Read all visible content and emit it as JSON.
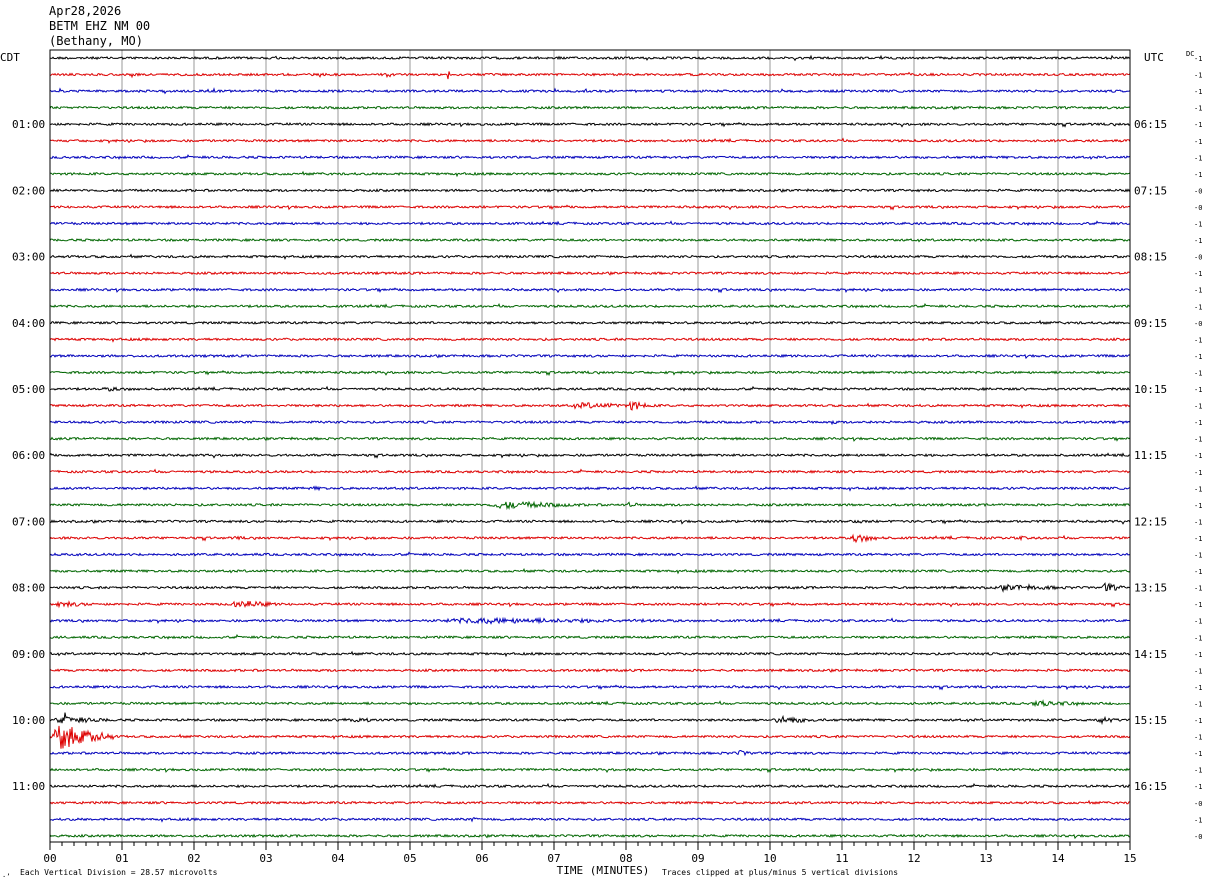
{
  "header": {
    "date": "Apr28,2026",
    "station": "BETM EHZ NM 00",
    "location": "(Bethany, MO)"
  },
  "left_tz": "CDT",
  "right_tz": "UTC",
  "dc_label": "DC",
  "footer": {
    "scale_note": "Each Vertical Division =   28.57 microvolts",
    "clip_note": "Traces clipped at plus/minus 5 vertical divisions",
    "corner_mark": "·’"
  },
  "chart_data": {
    "type": "helicorder",
    "xlabel": "TIME (MINUTES)",
    "x_ticks": [
      "00",
      "01",
      "02",
      "03",
      "04",
      "05",
      "06",
      "07",
      "08",
      "09",
      "10",
      "11",
      "12",
      "13",
      "14",
      "15"
    ],
    "x_range": [
      0,
      15
    ],
    "minutes_per_line": 15,
    "line_count": 48,
    "trace_colors": [
      "#000000",
      "#dd0000",
      "#0000bb",
      "#006600"
    ],
    "left_time_labels": [
      {
        "line": 4,
        "label": "01:00"
      },
      {
        "line": 8,
        "label": "02:00"
      },
      {
        "line": 12,
        "label": "03:00"
      },
      {
        "line": 16,
        "label": "04:00"
      },
      {
        "line": 20,
        "label": "05:00"
      },
      {
        "line": 24,
        "label": "06:00"
      },
      {
        "line": 28,
        "label": "07:00"
      },
      {
        "line": 32,
        "label": "08:00"
      },
      {
        "line": 36,
        "label": "09:00"
      },
      {
        "line": 40,
        "label": "10:00"
      },
      {
        "line": 44,
        "label": "11:00"
      }
    ],
    "right_time_labels": [
      {
        "line": 4,
        "label": "06:15"
      },
      {
        "line": 8,
        "label": "07:15"
      },
      {
        "line": 12,
        "label": "08:15"
      },
      {
        "line": 16,
        "label": "09:15"
      },
      {
        "line": 20,
        "label": "10:15"
      },
      {
        "line": 24,
        "label": "11:15"
      },
      {
        "line": 28,
        "label": "12:15"
      },
      {
        "line": 32,
        "label": "13:15"
      },
      {
        "line": 36,
        "label": "14:15"
      },
      {
        "line": 40,
        "label": "15:15"
      },
      {
        "line": 44,
        "label": "16:15"
      }
    ],
    "dc_offsets": [
      "-1",
      "-1",
      "-1",
      "-1",
      "-1",
      "-1",
      "-1",
      "-1",
      "-0",
      "-0",
      "-1",
      "-1",
      "-0",
      "-1",
      "-1",
      "-1",
      "-0",
      "-1",
      "-1",
      "-1",
      "-1",
      "-1",
      "-1",
      "-1",
      "-1",
      "-1",
      "-1",
      "-1",
      "-1",
      "-1",
      "-1",
      "-1",
      "-1",
      "-1",
      "-1",
      "-1",
      "-1",
      "-1",
      "-1",
      "-1",
      "-1",
      "-1",
      "-1",
      "-1",
      "-1",
      "-0",
      "-1",
      "-0"
    ],
    "events": [
      {
        "line": 1,
        "minute": 5.52,
        "amp": 7,
        "dur": 0.05
      },
      {
        "line": 20,
        "minute": 0.6,
        "amp": 2,
        "dur": 1.5
      },
      {
        "line": 21,
        "minute": 7.1,
        "amp": 3,
        "dur": 2.0
      },
      {
        "line": 21,
        "minute": 8.0,
        "amp": 5,
        "dur": 0.5
      },
      {
        "line": 22,
        "minute": 10.8,
        "amp": 2,
        "dur": 0.4
      },
      {
        "line": 26,
        "minute": 3.6,
        "amp": 2,
        "dur": 0.5
      },
      {
        "line": 27,
        "minute": 6.0,
        "amp": 4,
        "dur": 2.0
      },
      {
        "line": 27,
        "minute": 8.0,
        "amp": 3,
        "dur": 0.3
      },
      {
        "line": 28,
        "minute": 11.0,
        "amp": 2,
        "dur": 1.0
      },
      {
        "line": 29,
        "minute": 11.1,
        "amp": 5,
        "dur": 0.6
      },
      {
        "line": 29,
        "minute": 2.5,
        "amp": 2,
        "dur": 0.5
      },
      {
        "line": 29,
        "minute": 13.4,
        "amp": 2,
        "dur": 0.5
      },
      {
        "line": 32,
        "minute": 13.0,
        "amp": 3,
        "dur": 2.0
      },
      {
        "line": 32,
        "minute": 14.6,
        "amp": 5,
        "dur": 0.4
      },
      {
        "line": 33,
        "minute": 0.0,
        "amp": 3,
        "dur": 1.0
      },
      {
        "line": 33,
        "minute": 2.5,
        "amp": 5,
        "dur": 0.8
      },
      {
        "line": 33,
        "minute": 11.5,
        "amp": 2,
        "dur": 0.3
      },
      {
        "line": 34,
        "minute": 5.0,
        "amp": 3,
        "dur": 6.0
      },
      {
        "line": 39,
        "minute": 13.5,
        "amp": 3,
        "dur": 1.5
      },
      {
        "line": 40,
        "minute": 0.0,
        "amp": 4,
        "dur": 1.2
      },
      {
        "line": 40,
        "minute": 4.0,
        "amp": 3,
        "dur": 1.0
      },
      {
        "line": 40,
        "minute": 10.0,
        "amp": 4,
        "dur": 1.0
      },
      {
        "line": 40,
        "minute": 14.5,
        "amp": 4,
        "dur": 0.5
      },
      {
        "line": 41,
        "minute": 0.0,
        "amp": 14,
        "dur": 0.9
      },
      {
        "line": 42,
        "minute": 9.5,
        "amp": 3,
        "dur": 0.5
      },
      {
        "line": 46,
        "minute": 5.8,
        "amp": 2,
        "dur": 0.4
      }
    ]
  }
}
